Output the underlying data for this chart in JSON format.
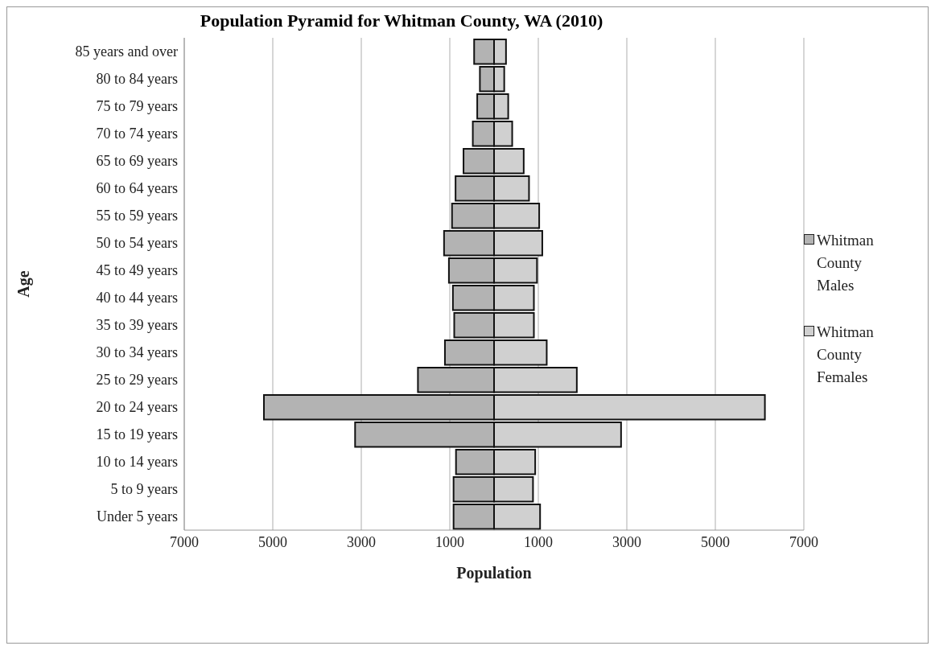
{
  "chart_data": {
    "type": "bar",
    "orientation": "horizontal",
    "stacked": true,
    "title": "Population Pyramid for Whitman County, WA (2010)",
    "xlabel": "Population",
    "ylabel": "Age",
    "categories": [
      "85 years and over",
      "80 to 84 years",
      "75 to 79 years",
      "70 to 74 years",
      "65 to 69 years",
      "60 to 64 years",
      "55 to 59 years",
      "50 to 54 years",
      "45 to 49 years",
      "40 to 44 years",
      "35 to 39 years",
      "30 to 34 years",
      "25 to 29 years",
      "20 to 24 years",
      "15 to 19 years",
      "10 to 14 years",
      "5 to 9 years",
      "Under 5 years"
    ],
    "series": [
      {
        "name": "Whitman County Males",
        "color": "#b3b3b3",
        "values": [
          -450,
          -320,
          -380,
          -480,
          -690,
          -870,
          -950,
          -1130,
          -1020,
          -930,
          -900,
          -1110,
          -1720,
          -5200,
          -3140,
          -860,
          -915,
          -915
        ]
      },
      {
        "name": "Whitman County Females",
        "color": "#d0d0d0",
        "values": [
          270,
          230,
          320,
          410,
          670,
          790,
          1020,
          1090,
          970,
          900,
          900,
          1190,
          1870,
          6120,
          2870,
          930,
          880,
          1040
        ]
      }
    ],
    "xlim": [
      -7000,
      7000
    ],
    "xticks": [
      {
        "value": -7000,
        "label": "7000"
      },
      {
        "value": -5000,
        "label": "5000"
      },
      {
        "value": -3000,
        "label": "3000"
      },
      {
        "value": -1000,
        "label": "1000"
      },
      1000,
      3000,
      5000,
      7000
    ],
    "grid": "x",
    "legend": "right"
  }
}
